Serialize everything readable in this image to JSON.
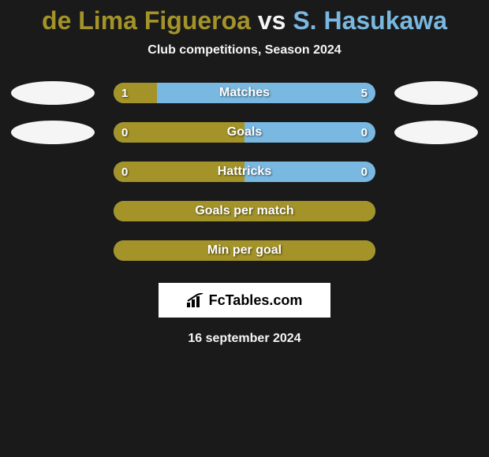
{
  "title": {
    "player1": "de Lima Figueroa",
    "vs": " vs ",
    "player2": "S. Hasukawa",
    "color1": "#a39329",
    "color2": "#79b8e1"
  },
  "subtitle": "Club competitions, Season 2024",
  "colors": {
    "p1": "#a39329",
    "p2": "#79b8e1",
    "bg": "#1a1a1a",
    "avatar": "#f5f5f5",
    "text": "#f5f5f5"
  },
  "rows": [
    {
      "label": "Matches",
      "left": "1",
      "right": "5",
      "left_pct": 16.7,
      "show_avatars": true
    },
    {
      "label": "Goals",
      "left": "0",
      "right": "0",
      "left_pct": 50.0,
      "show_avatars": true
    },
    {
      "label": "Hattricks",
      "left": "0",
      "right": "0",
      "left_pct": 50.0,
      "show_avatars": false
    },
    {
      "label": "Goals per match",
      "left": "",
      "right": "",
      "left_pct": 100.0,
      "show_avatars": false
    },
    {
      "label": "Min per goal",
      "left": "",
      "right": "",
      "left_pct": 100.0,
      "show_avatars": false
    }
  ],
  "footer": {
    "brand": "FcTables.com"
  },
  "date": "16 september 2024"
}
